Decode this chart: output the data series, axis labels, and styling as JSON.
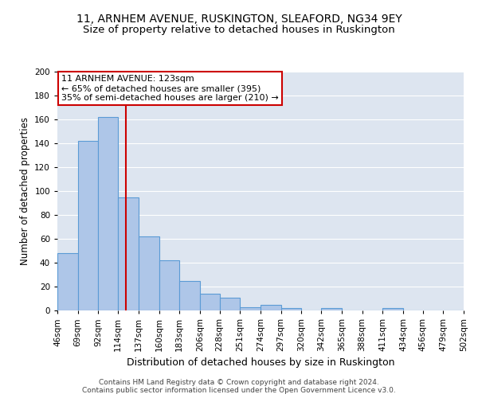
{
  "title1": "11, ARNHEM AVENUE, RUSKINGTON, SLEAFORD, NG34 9EY",
  "title2": "Size of property relative to detached houses in Ruskington",
  "xlabel": "Distribution of detached houses by size in Ruskington",
  "ylabel": "Number of detached properties",
  "bin_labels": [
    "46sqm",
    "69sqm",
    "92sqm",
    "114sqm",
    "137sqm",
    "160sqm",
    "183sqm",
    "206sqm",
    "228sqm",
    "251sqm",
    "274sqm",
    "297sqm",
    "320sqm",
    "342sqm",
    "365sqm",
    "388sqm",
    "411sqm",
    "434sqm",
    "456sqm",
    "479sqm",
    "502sqm"
  ],
  "bin_edges": [
    46,
    69,
    92,
    114,
    137,
    160,
    183,
    206,
    228,
    251,
    274,
    297,
    320,
    342,
    365,
    388,
    411,
    434,
    456,
    479,
    502
  ],
  "heights": [
    48,
    142,
    162,
    95,
    62,
    42,
    25,
    14,
    11,
    3,
    5,
    2,
    0,
    2,
    0,
    0,
    2,
    0,
    0,
    0
  ],
  "bar_color": "#aec6e8",
  "bar_edge_color": "#5b9bd5",
  "vline_x": 123,
  "vline_color": "#cc0000",
  "annotation_line1": "11 ARNHEM AVENUE: 123sqm",
  "annotation_line2": "← 65% of detached houses are smaller (395)",
  "annotation_line3": "35% of semi-detached houses are larger (210) →",
  "annotation_box_color": "white",
  "annotation_box_edge": "#cc0000",
  "ylim": [
    0,
    200
  ],
  "yticks": [
    0,
    20,
    40,
    60,
    80,
    100,
    120,
    140,
    160,
    180,
    200
  ],
  "background_color": "#dde5f0",
  "grid_color": "white",
  "title1_fontsize": 10,
  "title2_fontsize": 9.5,
  "xlabel_fontsize": 9,
  "ylabel_fontsize": 8.5,
  "tick_fontsize": 7.5,
  "annot_fontsize": 8,
  "footer": "Contains HM Land Registry data © Crown copyright and database right 2024.\nContains public sector information licensed under the Open Government Licence v3.0.",
  "footer_fontsize": 6.5
}
